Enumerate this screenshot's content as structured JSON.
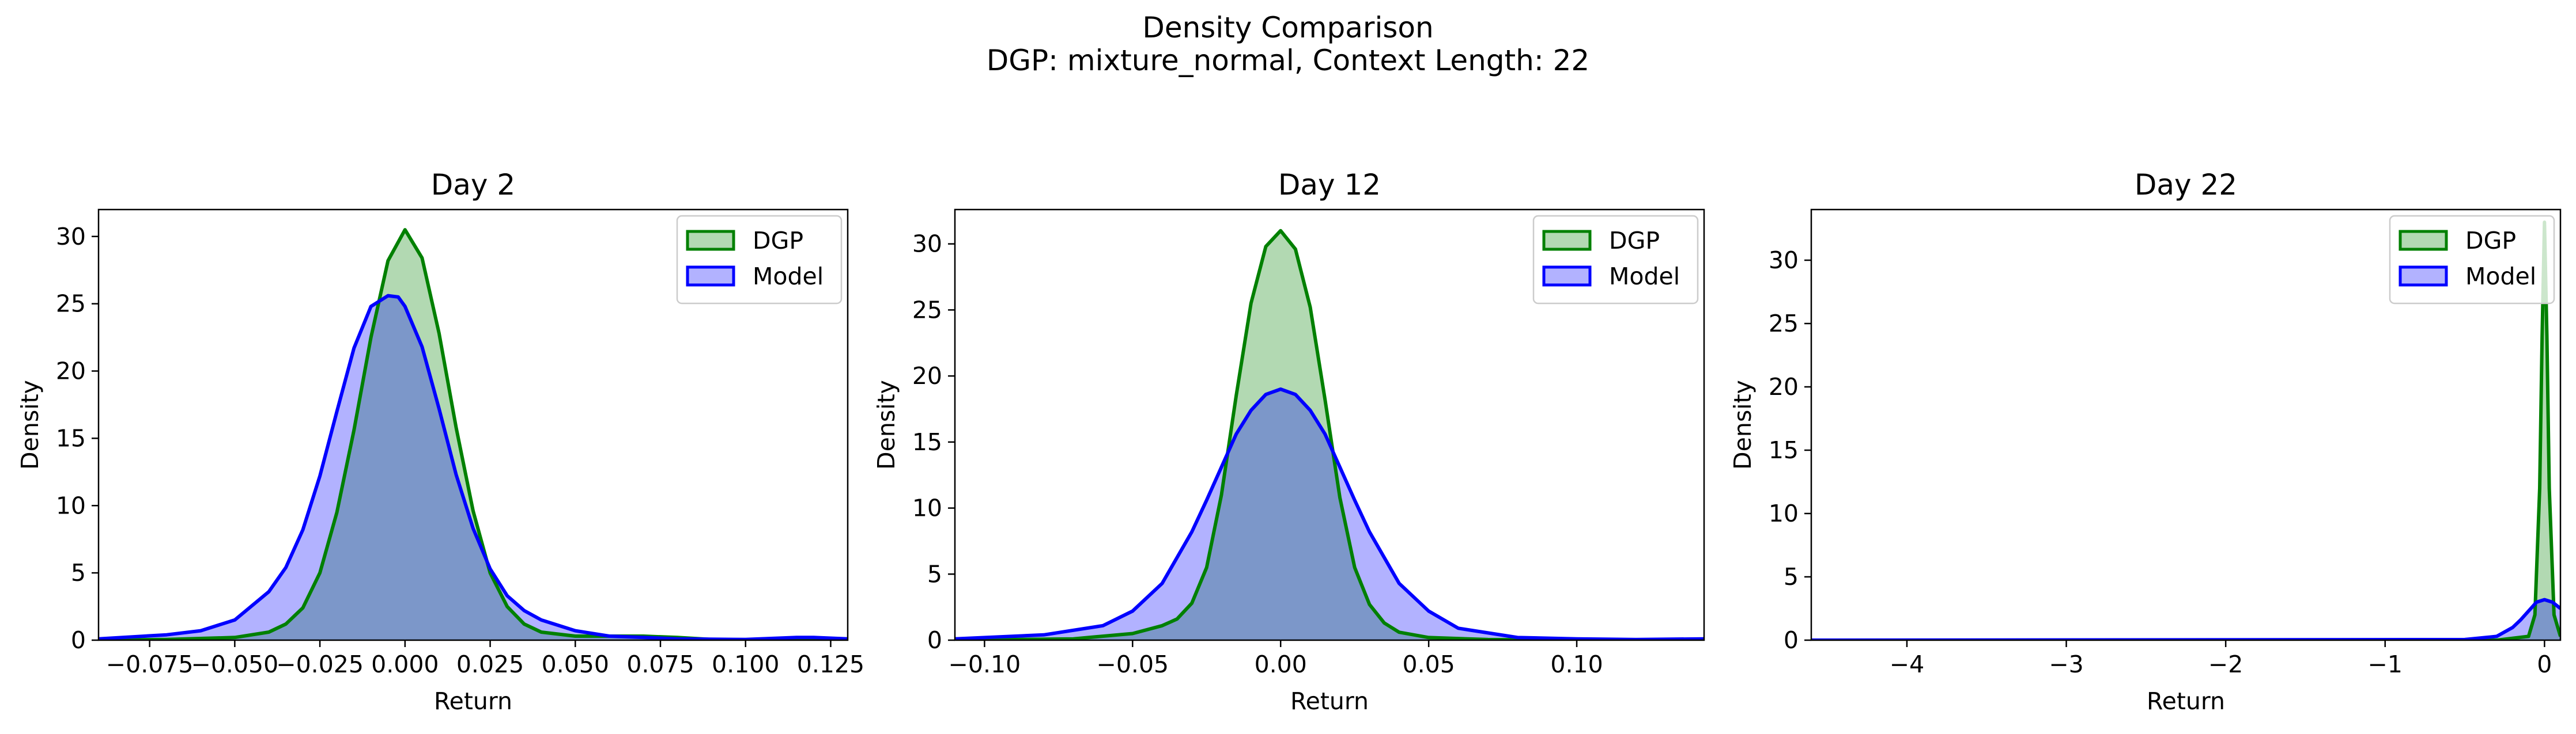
{
  "figure": {
    "title": "Density Comparison",
    "subtitle": "DGP: mixture_normal, Context Length: 22"
  },
  "colors": {
    "dgp": "#008000",
    "model": "#0000ff",
    "dgp_fill": "rgba(0,128,0,0.30)",
    "model_fill": "rgba(0,0,255,0.30)"
  },
  "chart_data": [
    {
      "type": "area",
      "title": "Day 2",
      "xlabel": "Return",
      "ylabel": "Density",
      "xlim": [
        -0.09,
        0.13
      ],
      "ylim": [
        0,
        32
      ],
      "xticks": [
        -0.075,
        -0.05,
        -0.025,
        0.0,
        0.025,
        0.05,
        0.075,
        0.1,
        0.125
      ],
      "xtick_labels": [
        "−0.075",
        "−0.050",
        "−0.025",
        "0.000",
        "0.025",
        "0.050",
        "0.075",
        "0.100",
        "0.125"
      ],
      "yticks": [
        0,
        5,
        10,
        15,
        20,
        25,
        30
      ],
      "ytick_labels": [
        "0",
        "5",
        "10",
        "15",
        "20",
        "25",
        "30"
      ],
      "legend": {
        "position": "upper right",
        "entries": [
          "DGP",
          "Model"
        ]
      },
      "series": [
        {
          "name": "DGP",
          "x": [
            -0.09,
            -0.07,
            -0.05,
            -0.04,
            -0.035,
            -0.03,
            -0.025,
            -0.02,
            -0.015,
            -0.01,
            -0.005,
            0.0,
            0.005,
            0.01,
            0.015,
            0.02,
            0.025,
            0.03,
            0.035,
            0.04,
            0.05,
            0.06,
            0.07,
            0.08,
            0.09,
            0.1,
            0.11,
            0.12,
            0.13
          ],
          "y": [
            0.0,
            0.05,
            0.2,
            0.6,
            1.2,
            2.4,
            5.0,
            9.5,
            15.6,
            22.5,
            28.2,
            30.5,
            28.4,
            22.8,
            15.8,
            9.6,
            5.0,
            2.5,
            1.2,
            0.6,
            0.3,
            0.3,
            0.3,
            0.2,
            0.05,
            0.0,
            0.05,
            0.1,
            0.0
          ]
        },
        {
          "name": "Model",
          "x": [
            -0.09,
            -0.07,
            -0.06,
            -0.05,
            -0.04,
            -0.035,
            -0.03,
            -0.025,
            -0.02,
            -0.015,
            -0.01,
            -0.005,
            -0.002,
            0.0,
            0.005,
            0.01,
            0.015,
            0.02,
            0.025,
            0.03,
            0.035,
            0.04,
            0.05,
            0.06,
            0.07,
            0.08,
            0.1,
            0.115,
            0.12,
            0.13
          ],
          "y": [
            0.1,
            0.4,
            0.7,
            1.5,
            3.6,
            5.4,
            8.2,
            12.2,
            17.0,
            21.7,
            24.8,
            25.6,
            25.5,
            24.8,
            21.8,
            17.2,
            12.3,
            8.3,
            5.3,
            3.3,
            2.2,
            1.5,
            0.7,
            0.3,
            0.2,
            0.1,
            0.05,
            0.2,
            0.2,
            0.1
          ]
        }
      ]
    },
    {
      "type": "area",
      "title": "Day 12",
      "xlabel": "Return",
      "ylabel": "Density",
      "xlim": [
        -0.11,
        0.143
      ],
      "ylim": [
        0,
        32.6
      ],
      "xticks": [
        -0.1,
        -0.05,
        0.0,
        0.05,
        0.1
      ],
      "xtick_labels": [
        "−0.10",
        "−0.05",
        "0.00",
        "0.05",
        "0.10"
      ],
      "yticks": [
        0,
        5,
        10,
        15,
        20,
        25,
        30
      ],
      "ytick_labels": [
        "0",
        "5",
        "10",
        "15",
        "20",
        "25",
        "30"
      ],
      "legend": {
        "position": "upper right",
        "entries": [
          "DGP",
          "Model"
        ]
      },
      "series": [
        {
          "name": "DGP",
          "x": [
            -0.11,
            -0.07,
            -0.05,
            -0.04,
            -0.035,
            -0.03,
            -0.025,
            -0.02,
            -0.015,
            -0.01,
            -0.005,
            0.0,
            0.005,
            0.01,
            0.015,
            0.02,
            0.025,
            0.03,
            0.035,
            0.04,
            0.05,
            0.07,
            0.1,
            0.143
          ],
          "y": [
            0.0,
            0.1,
            0.5,
            1.1,
            1.6,
            2.8,
            5.5,
            11.0,
            18.5,
            25.5,
            29.8,
            31.0,
            29.6,
            25.2,
            18.2,
            10.8,
            5.5,
            2.7,
            1.3,
            0.6,
            0.2,
            0.05,
            0.0,
            0.0
          ]
        },
        {
          "name": "Model",
          "x": [
            -0.11,
            -0.08,
            -0.06,
            -0.05,
            -0.04,
            -0.03,
            -0.025,
            -0.02,
            -0.015,
            -0.01,
            -0.005,
            0.0,
            0.005,
            0.01,
            0.015,
            0.02,
            0.025,
            0.03,
            0.04,
            0.05,
            0.06,
            0.08,
            0.1,
            0.12,
            0.143
          ],
          "y": [
            0.1,
            0.4,
            1.1,
            2.2,
            4.3,
            8.2,
            10.6,
            13.1,
            15.6,
            17.4,
            18.6,
            19.0,
            18.6,
            17.4,
            15.6,
            13.1,
            10.6,
            8.2,
            4.3,
            2.2,
            0.9,
            0.2,
            0.1,
            0.05,
            0.1
          ]
        }
      ]
    },
    {
      "type": "area",
      "title": "Day 22",
      "xlabel": "Return",
      "ylabel": "Density",
      "xlim": [
        -4.6,
        0.1
      ],
      "ylim": [
        0,
        34
      ],
      "xticks": [
        -4,
        -3,
        -2,
        -1,
        0
      ],
      "xtick_labels": [
        "−4",
        "−3",
        "−2",
        "−1",
        "0"
      ],
      "yticks": [
        0,
        5,
        10,
        15,
        20,
        25,
        30
      ],
      "ytick_labels": [
        "0",
        "5",
        "10",
        "15",
        "20",
        "25",
        "30"
      ],
      "legend": {
        "position": "upper right",
        "entries": [
          "DGP",
          "Model"
        ]
      },
      "series": [
        {
          "name": "DGP",
          "x": [
            -4.6,
            -0.3,
            -0.1,
            -0.06,
            -0.03,
            -0.015,
            0.0,
            0.015,
            0.03,
            0.06,
            0.1
          ],
          "y": [
            0.0,
            0.0,
            0.3,
            2.0,
            12.0,
            24.0,
            33.0,
            24.0,
            12.0,
            2.0,
            0.3
          ]
        },
        {
          "name": "Model",
          "x": [
            -4.6,
            -0.5,
            -0.3,
            -0.2,
            -0.15,
            -0.1,
            -0.05,
            0.0,
            0.05,
            0.1
          ],
          "y": [
            0.0,
            0.05,
            0.3,
            1.0,
            1.6,
            2.3,
            3.0,
            3.2,
            3.0,
            2.5
          ]
        }
      ]
    }
  ]
}
